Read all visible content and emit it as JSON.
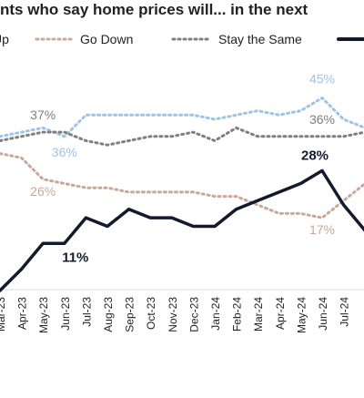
{
  "chart_data": {
    "type": "line",
    "title": "nts who say home prices will... in the next",
    "categories": [
      "Mar-23",
      "Apr-23",
      "May-23",
      "Jun-23",
      "Jul-23",
      "Aug-23",
      "Sep-23",
      "Oct-23",
      "Nov-23",
      "Dec-23",
      "Jan-24",
      "Feb-24",
      "Mar-24",
      "Apr-24",
      "May-24",
      "Jun-24",
      "Jul-24",
      null
    ],
    "series": [
      {
        "name": "Up",
        "color": "#9dc3e6",
        "dash": true,
        "values": [
          36,
          37,
          38,
          36,
          41,
          41,
          41,
          41,
          41,
          41,
          40,
          41,
          42,
          41,
          42,
          45,
          40,
          38
        ],
        "value_labels": [
          null,
          null,
          null,
          "36%",
          null,
          null,
          null,
          null,
          null,
          null,
          null,
          null,
          null,
          null,
          null,
          "45%",
          null,
          null
        ]
      },
      {
        "name": "Go Down",
        "color": "#c9a89a",
        "dash": true,
        "values": [
          32,
          31,
          26,
          25,
          24,
          24,
          23,
          23,
          23,
          23,
          22,
          22,
          20,
          18,
          18,
          17,
          21,
          25
        ],
        "value_labels": [
          null,
          null,
          "26%",
          null,
          null,
          null,
          null,
          null,
          null,
          null,
          null,
          null,
          null,
          null,
          null,
          "17%",
          null,
          null
        ]
      },
      {
        "name": "Stay the Same",
        "color": "#7f7f7f",
        "dash": true,
        "values": [
          35,
          36,
          37,
          37,
          35,
          34,
          35,
          36,
          36,
          37,
          35,
          38,
          36,
          36,
          36,
          36,
          36,
          37
        ],
        "value_labels": [
          null,
          null,
          "37%",
          null,
          null,
          null,
          null,
          null,
          null,
          null,
          null,
          null,
          null,
          null,
          null,
          "36%",
          null,
          null
        ]
      },
      {
        "color": "#141a2e",
        "dash": false,
        "values": [
          0,
          5,
          11,
          11,
          17,
          15,
          19,
          17,
          17,
          15,
          15,
          19,
          21,
          23,
          25,
          28,
          20,
          14
        ],
        "value_labels": [
          null,
          null,
          null,
          "11%",
          null,
          null,
          null,
          null,
          null,
          null,
          null,
          null,
          null,
          null,
          null,
          "28%",
          null,
          null
        ]
      }
    ],
    "ylim": [
      0,
      60
    ]
  }
}
